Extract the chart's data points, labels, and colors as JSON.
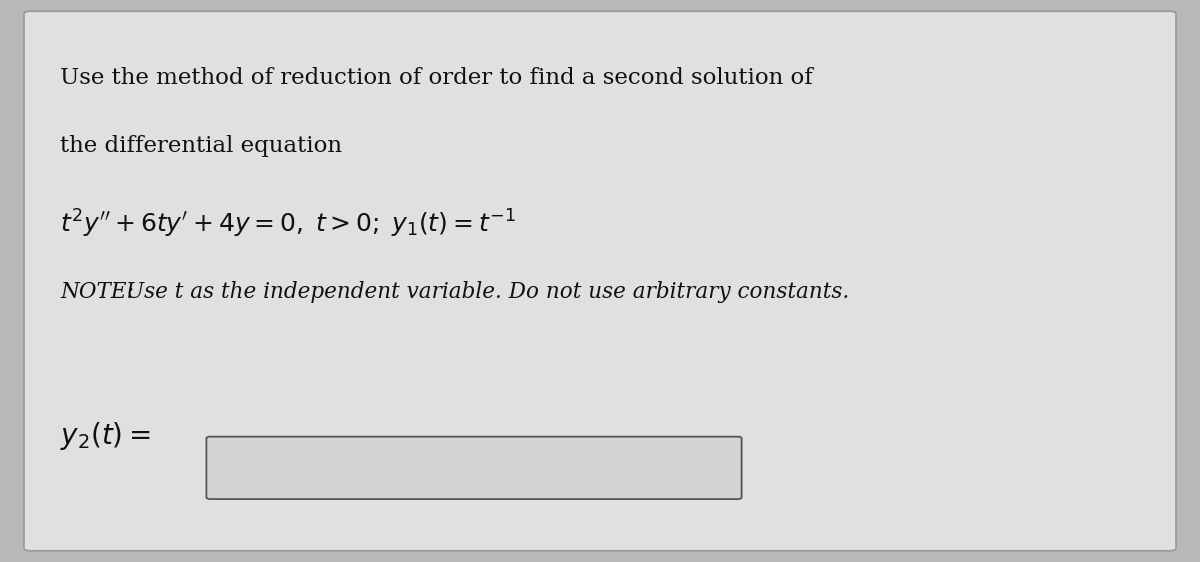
{
  "bg_color": "#b8b8b8",
  "card_color": "#e0e0e0",
  "card_border_color": "#999999",
  "text_color": "#111111",
  "line1": "Use the method of reduction of order to find a second solution of",
  "line2": "the differential equation",
  "equation": "$t^2y'' + 6ty' + 4y = 0, \\; t > 0; \\; y_1(t) = t^{-1}$",
  "note_prefix": "NOTE: ",
  "note_body": "Use t as the independent variable. Do not use arbitrary constants.",
  "answer_label": "$y_2(t) =$",
  "input_box_color": "#d4d4d4",
  "input_box_border": "#555555",
  "figsize": [
    12.0,
    5.62
  ],
  "dpi": 100
}
